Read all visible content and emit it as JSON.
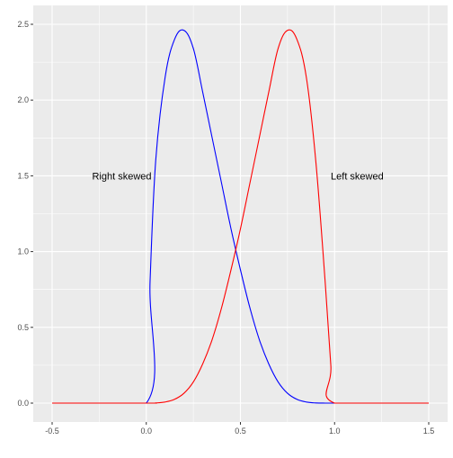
{
  "chart_data": {
    "type": "line",
    "title": "",
    "xlabel": "",
    "ylabel": "",
    "xlim": [
      -0.5,
      1.5
    ],
    "ylim": [
      0,
      2.5
    ],
    "x_ticks": [
      -0.5,
      0.0,
      0.5,
      1.0,
      1.5
    ],
    "x_tick_labels": [
      "-0.5",
      "0.0",
      "0.5",
      "1.0",
      "1.5"
    ],
    "y_ticks": [
      0.0,
      0.5,
      1.0,
      1.5,
      2.0,
      2.5
    ],
    "y_tick_labels": [
      "0.0",
      "0.5",
      "1.0",
      "1.5",
      "2.0",
      "2.5"
    ],
    "grid": true,
    "legend": "none",
    "colors": {
      "panel": "#ebebeb",
      "grid": "#ffffff",
      "axis_text": "#4d4d4d"
    },
    "series": [
      {
        "color": "#0000ff",
        "x": [
          -0.5,
          0.0,
          0.02,
          0.05,
          0.1,
          0.15,
          0.2,
          0.25,
          0.3,
          0.35,
          0.4,
          0.45,
          0.5,
          0.55,
          0.6,
          0.65,
          0.7,
          0.75,
          0.8,
          0.85,
          0.9,
          0.95,
          1.0,
          1.5
        ],
        "y": [
          0,
          0,
          0.8,
          1.6,
          2.15,
          2.4,
          2.46,
          2.34,
          2.05,
          1.75,
          1.45,
          1.15,
          0.88,
          0.63,
          0.42,
          0.26,
          0.14,
          0.065,
          0.025,
          0.007,
          0.001,
          0,
          0,
          0
        ]
      },
      {
        "color": "#ff0000",
        "x": [
          -0.5,
          0.0,
          0.05,
          0.1,
          0.15,
          0.2,
          0.25,
          0.3,
          0.35,
          0.4,
          0.45,
          0.5,
          0.55,
          0.6,
          0.65,
          0.7,
          0.75,
          0.8,
          0.85,
          0.9,
          0.95,
          0.98,
          1.0,
          1.5
        ],
        "y": [
          0,
          0,
          0.001,
          0.007,
          0.025,
          0.065,
          0.14,
          0.26,
          0.42,
          0.63,
          0.88,
          1.15,
          1.45,
          1.75,
          2.05,
          2.34,
          2.46,
          2.4,
          2.15,
          1.6,
          0.8,
          0.25,
          0,
          0
        ]
      }
    ],
    "annotations": [
      {
        "text": "Right skewed",
        "x": -0.13,
        "y": 1.5
      },
      {
        "text": "Left skewed",
        "x": 1.12,
        "y": 1.5
      }
    ]
  }
}
